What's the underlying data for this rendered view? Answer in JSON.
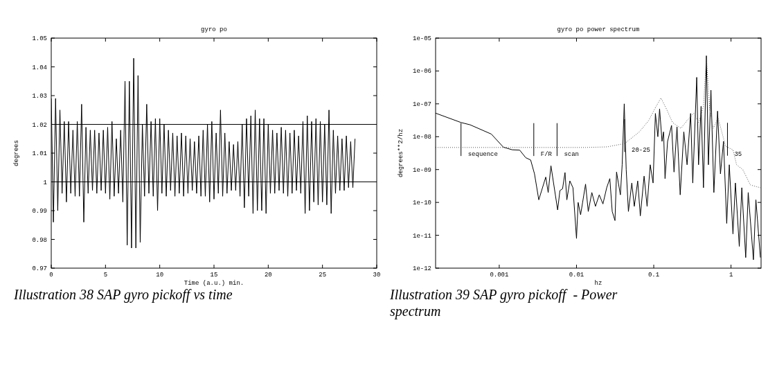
{
  "chart_data": [
    {
      "type": "line",
      "title": "gyro po",
      "xlabel": "Time (a.u.) min.",
      "ylabel": "degrees",
      "xlim": [
        0,
        30
      ],
      "xticks": [
        0,
        5,
        10,
        15,
        20,
        25,
        30
      ],
      "ylim": [
        0.97,
        1.05
      ],
      "yticks": [
        0.97,
        0.98,
        0.99,
        1,
        1.01,
        1.02,
        1.03,
        1.04,
        1.05
      ],
      "ref_lines": [
        {
          "axis": "y",
          "value": 1.02,
          "color": "#000000"
        },
        {
          "axis": "y",
          "value": 1,
          "color": "#000000"
        }
      ],
      "annotations": [
        "Illustration 38 SAP gyro pickoff vs time"
      ],
      "series": [
        {
          "color": "#000000",
          "x": [
            0,
            0.2,
            0.4,
            0.6,
            0.8,
            1,
            1.2,
            1.4,
            1.6,
            1.8,
            2,
            2.2,
            2.4,
            2.6,
            2.8,
            3,
            3.2,
            3.4,
            3.6,
            3.8,
            4,
            4.2,
            4.4,
            4.6,
            4.8,
            5,
            5.2,
            5.4,
            5.6,
            5.8,
            6,
            6.2,
            6.4,
            6.6,
            6.8,
            7,
            7.2,
            7.4,
            7.6,
            7.8,
            8,
            8.2,
            8.4,
            8.6,
            8.8,
            9,
            9.2,
            9.4,
            9.6,
            9.8,
            10,
            10.2,
            10.4,
            10.6,
            10.8,
            11,
            11.2,
            11.4,
            11.6,
            11.8,
            12,
            12.2,
            12.4,
            12.6,
            12.8,
            13,
            13.2,
            13.4,
            13.6,
            13.8,
            14,
            14.2,
            14.4,
            14.6,
            14.8,
            15,
            15.2,
            15.4,
            15.6,
            15.8,
            16,
            16.2,
            16.4,
            16.6,
            16.8,
            17,
            17.2,
            17.4,
            17.6,
            17.8,
            18,
            18.2,
            18.4,
            18.6,
            18.8,
            19,
            19.2,
            19.4,
            19.6,
            19.8,
            20,
            20.2,
            20.4,
            20.6,
            20.8,
            21,
            21.2,
            21.4,
            21.6,
            21.8,
            22,
            22.2,
            22.4,
            22.6,
            22.8,
            23,
            23.2,
            23.4,
            23.6,
            23.8,
            24,
            24.2,
            24.4,
            24.6,
            24.8,
            25,
            25.2,
            25.4,
            25.6,
            25.8,
            26,
            26.2,
            26.4,
            26.6,
            26.8,
            27,
            27.2,
            27.4,
            27.6,
            27.8,
            28
          ],
          "values": [
            1.029,
            0.986,
            1.029,
            0.99,
            1.025,
            0.996,
            1.021,
            0.993,
            1.021,
            0.996,
            1.018,
            0.995,
            1.021,
            0.995,
            1.027,
            0.986,
            1.019,
            0.996,
            1.018,
            0.997,
            1.018,
            0.996,
            1.017,
            0.997,
            1.018,
            0.996,
            1.019,
            0.994,
            1.021,
            0.995,
            1.015,
            0.996,
            1.018,
            0.993,
            1.035,
            0.978,
            1.035,
            0.977,
            1.043,
            0.977,
            1.037,
            0.979,
            1.02,
            0.995,
            1.027,
            0.996,
            1.021,
            0.995,
            1.022,
            0.99,
            1.022,
            0.996,
            1.02,
            0.995,
            1.018,
            0.997,
            1.017,
            0.995,
            1.016,
            0.996,
            1.017,
            0.995,
            1.016,
            0.996,
            1.015,
            0.997,
            1.014,
            0.996,
            1.016,
            0.995,
            1.018,
            0.995,
            1.02,
            0.993,
            1.021,
            0.994,
            1.017,
            0.996,
            1.025,
            0.995,
            1.017,
            0.996,
            1.014,
            0.997,
            1.013,
            0.997,
            1.014,
            0.995,
            1.02,
            0.991,
            1.022,
            0.995,
            1.023,
            0.989,
            1.025,
            0.99,
            1.022,
            0.99,
            1.022,
            0.989,
            1.02,
            0.996,
            1.018,
            0.996,
            1.017,
            0.997,
            1.019,
            0.996,
            1.018,
            0.995,
            1.017,
            0.996,
            1.018,
            0.997,
            1.016,
            0.996,
            1.021,
            0.989,
            1.023,
            0.99,
            1.021,
            0.993,
            1.022,
            0.992,
            1.021,
            0.993,
            1.02,
            0.992,
            1.025,
            0.989,
            1.018,
            0.996,
            1.016,
            0.997,
            1.015,
            0.997,
            1.016,
            0.998,
            1.014,
            0.998,
            1.015
          ]
        }
      ]
    },
    {
      "type": "line",
      "title": "gyro po power spectrum",
      "xlabel": "hz",
      "ylabel": "degrees**2/hz",
      "log": "xy",
      "xlim": [
        0.00015,
        2.45
      ],
      "xticks": [
        0.001,
        0.01,
        0.1,
        1
      ],
      "ylim": [
        1e-12,
        1e-05
      ],
      "yticks": [
        {
          "value": 1e-12,
          "label": "1e-12"
        },
        {
          "value": 1e-11,
          "label": "1e-11"
        },
        {
          "value": 1e-10,
          "label": "1e-10"
        },
        {
          "value": 1e-09,
          "label": "1e-09"
        },
        {
          "value": 1e-08,
          "label": "1e-08"
        },
        {
          "value": 1e-07,
          "label": "1e-07"
        },
        {
          "value": 1e-06,
          "label": "1e-06"
        },
        {
          "value": 1e-05,
          "label": "1e-05"
        }
      ],
      "annotations": [
        "Illustration 39 SAP gyro pickoff  - Power spectrum",
        {
          "text": "sequence",
          "x": 0.00032,
          "y": 4.7e-09
        },
        {
          "text": "F/R",
          "x": 0.0028,
          "y": 4.7e-09
        },
        {
          "text": "scan",
          "x": 0.0056,
          "y": 4.7e-09
        },
        {
          "text": "20-25",
          "x": 0.042,
          "y": 6.2e-09
        },
        {
          "text": "35",
          "x": 0.9,
          "y": 4.8e-09
        }
      ],
      "series": [
        {
          "color": "#000000",
          "line_style": "solid",
          "x": [
            0.00015,
            0.00032,
            0.00042,
            0.00079,
            0.00113,
            0.00147,
            0.00184,
            0.0022,
            0.00255,
            0.00286,
            0.00325,
            0.004,
            0.0043,
            0.00467,
            0.0057,
            0.0061,
            0.0066,
            0.0071,
            0.0075,
            0.0082,
            0.009,
            0.01,
            0.0105,
            0.0113,
            0.012,
            0.0131,
            0.0142,
            0.0158,
            0.0176,
            0.0197,
            0.022,
            0.0246,
            0.027,
            0.029,
            0.0315,
            0.033,
            0.037,
            0.039,
            0.0415,
            0.044,
            0.047,
            0.052,
            0.056,
            0.062,
            0.067,
            0.075,
            0.082,
            0.09,
            0.098,
            0.105,
            0.113,
            0.119,
            0.128,
            0.134,
            0.14,
            0.151,
            0.17,
            0.183,
            0.2,
            0.22,
            0.245,
            0.27,
            0.3,
            0.32,
            0.36,
            0.38,
            0.41,
            0.44,
            0.48,
            0.51,
            0.55,
            0.6,
            0.67,
            0.73,
            0.8,
            0.88,
            0.95,
            1.06,
            1.14,
            1.28,
            1.38,
            1.55,
            1.67,
            1.95,
            2.1,
            2.4
          ],
          "values": [
            5.2e-08,
            2.7e-08,
            2.3e-08,
            1.2e-08,
            4.8e-09,
            4e-09,
            3.9e-09,
            2.3e-09,
            1.95e-09,
            7.4e-10,
            1.2e-10,
            5.9e-10,
            2e-10,
            1.3e-09,
            5.9e-11,
            2.3e-10,
            2.6e-10,
            8.1e-10,
            1.2e-10,
            4.5e-10,
            2.8e-10,
            8e-12,
            1e-10,
            4.2e-11,
            1e-10,
            3.6e-10,
            5.3e-11,
            2e-10,
            7.6e-11,
            1.7e-10,
            9e-11,
            2.8e-10,
            5.3e-10,
            5.3e-11,
            2.8e-11,
            8.4e-10,
            1.7e-10,
            1.4e-09,
            1e-07,
            1e-09,
            5.3e-11,
            3.9e-10,
            7.6e-11,
            4.5e-10,
            3.9e-11,
            6.3e-10,
            7.6e-11,
            1.4e-09,
            3.9e-10,
            5.1e-08,
            1e-08,
            7e-08,
            7.2e-09,
            1.4e-08,
            5.3e-10,
            7.2e-09,
            2.2e-08,
            8.4e-10,
            2e-08,
            1.7e-10,
            1.4e-08,
            1.4e-09,
            5.1e-08,
            3.9e-10,
            6.4e-07,
            1.4e-09,
            8.4e-08,
            2.8e-10,
            2.9e-06,
            1.4e-09,
            2.6e-07,
            2e-10,
            6e-08,
            7.4e-10,
            7.2e-09,
            2.3e-11,
            1.4e-09,
            1.1e-11,
            3.9e-10,
            4.6e-12,
            2.8e-10,
            2.1e-12,
            2e-10,
            1.8e-12,
            1.2e-10,
            2.1e-12
          ]
        },
        {
          "color": "#555555",
          "line_style": "dotted",
          "x": [
            0.00015,
            0.013,
            0.025,
            0.042,
            0.065,
            0.086,
            0.107,
            0.124,
            0.146,
            0.175,
            0.225,
            0.27,
            0.33,
            0.38,
            0.44,
            0.48,
            0.53,
            0.59,
            0.68,
            0.76,
            0.85,
            1.06,
            1.18,
            1.42,
            1.78,
            2.4
          ],
          "values": [
            4.7e-09,
            4.7e-09,
            4.9e-09,
            6.2e-09,
            1.4e-08,
            3.1e-08,
            8.3e-08,
            1.5e-07,
            7e-08,
            2.7e-08,
            1.8e-08,
            3.1e-08,
            5.2e-08,
            2.7e-08,
            8.4e-08,
            2.6e-06,
            7e-08,
            1.8e-08,
            3.7e-08,
            1.4e-08,
            5.1e-09,
            4e-09,
            1.4e-09,
            1e-09,
            3.4e-10,
            2.8e-10
          ]
        }
      ]
    }
  ]
}
